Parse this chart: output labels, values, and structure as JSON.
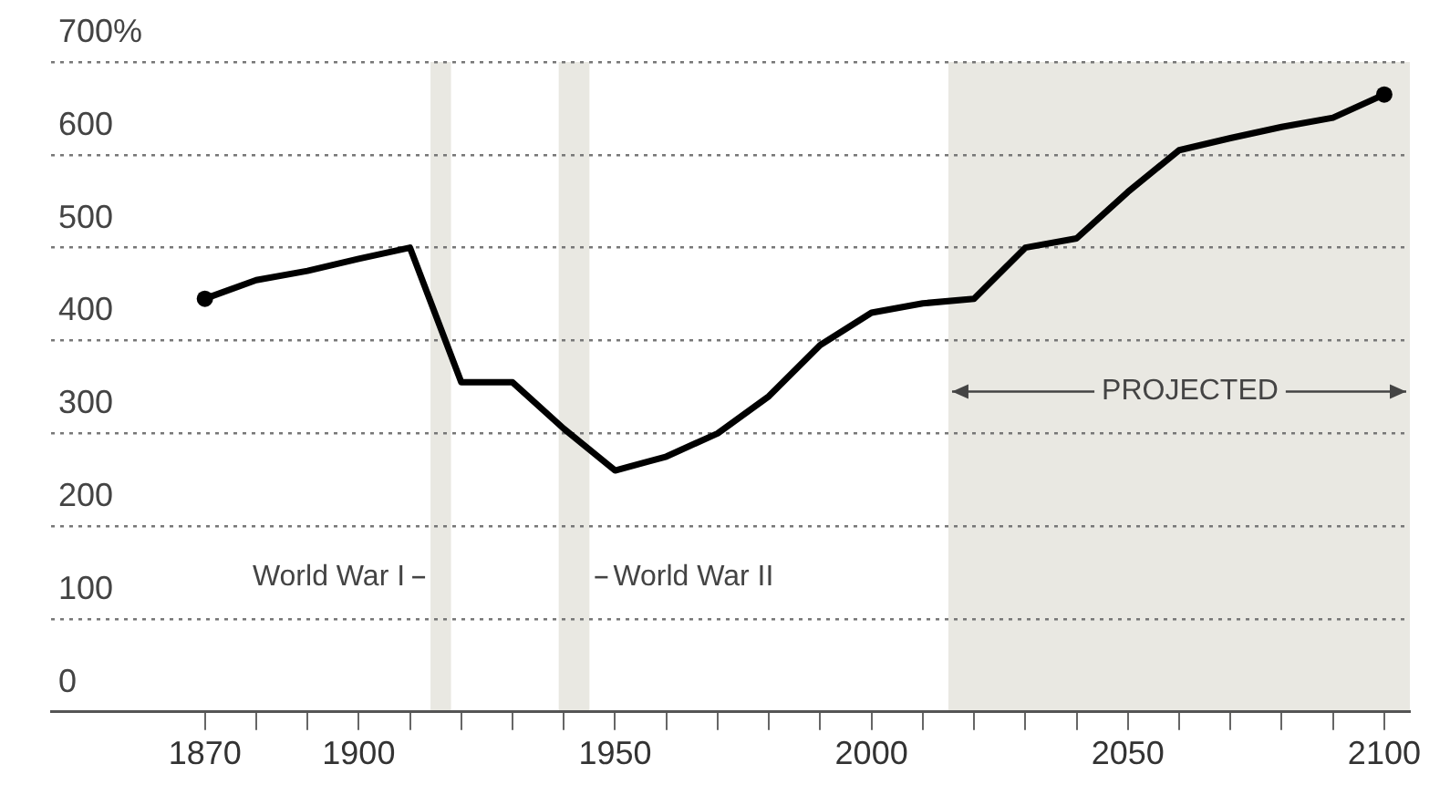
{
  "chart_data": {
    "type": "line",
    "x": [
      1870,
      1880,
      1890,
      1900,
      1910,
      1920,
      1930,
      1940,
      1950,
      1960,
      1970,
      1980,
      1990,
      2000,
      2010,
      2020,
      2030,
      2040,
      2050,
      2060,
      2070,
      2080,
      2090,
      2100
    ],
    "series": [
      {
        "color": "#000000",
        "values": [
          445,
          465,
          475,
          488,
          500,
          355,
          355,
          305,
          260,
          275,
          300,
          340,
          395,
          430,
          440,
          445,
          500,
          510,
          560,
          605,
          618,
          630,
          640,
          665
        ]
      }
    ],
    "xlim": [
      1840,
      2105
    ],
    "xticks": [
      1870,
      {
        "value": 1880,
        "label": null
      },
      {
        "value": 1890,
        "label": null
      },
      1900,
      {
        "value": 1910,
        "label": null
      },
      {
        "value": 1920,
        "label": null
      },
      {
        "value": 1930,
        "label": null
      },
      {
        "value": 1940,
        "label": null
      },
      1950,
      {
        "value": 1960,
        "label": null
      },
      {
        "value": 1970,
        "label": null
      },
      {
        "value": 1980,
        "label": null
      },
      {
        "value": 1990,
        "label": null
      },
      2000,
      {
        "value": 2010,
        "label": null
      },
      {
        "value": 2020,
        "label": null
      },
      {
        "value": 2030,
        "label": null
      },
      {
        "value": 2040,
        "label": null
      },
      2050,
      {
        "value": 2060,
        "label": null
      },
      {
        "value": 2070,
        "label": null
      },
      {
        "value": 2080,
        "label": null
      },
      {
        "value": 2090,
        "label": null
      },
      2100
    ],
    "ylim": [
      0,
      700
    ],
    "yticks": [
      0,
      100,
      200,
      300,
      400,
      500,
      600,
      {
        "value": 700,
        "label": "700%"
      }
    ],
    "bands": [
      {
        "axis": "x",
        "from": 1914,
        "to": 1918,
        "label": "World War I",
        "color": "#e9e8e2"
      },
      {
        "axis": "x",
        "from": 1939,
        "to": 1945,
        "label": "World War II",
        "color": "#e9e8e2"
      },
      {
        "axis": "x",
        "from": 2015,
        "to": 2105,
        "label": "PROJECTED",
        "color": "#e9e8e2"
      }
    ],
    "grid": "y",
    "legend": false,
    "line_style": "solid"
  }
}
